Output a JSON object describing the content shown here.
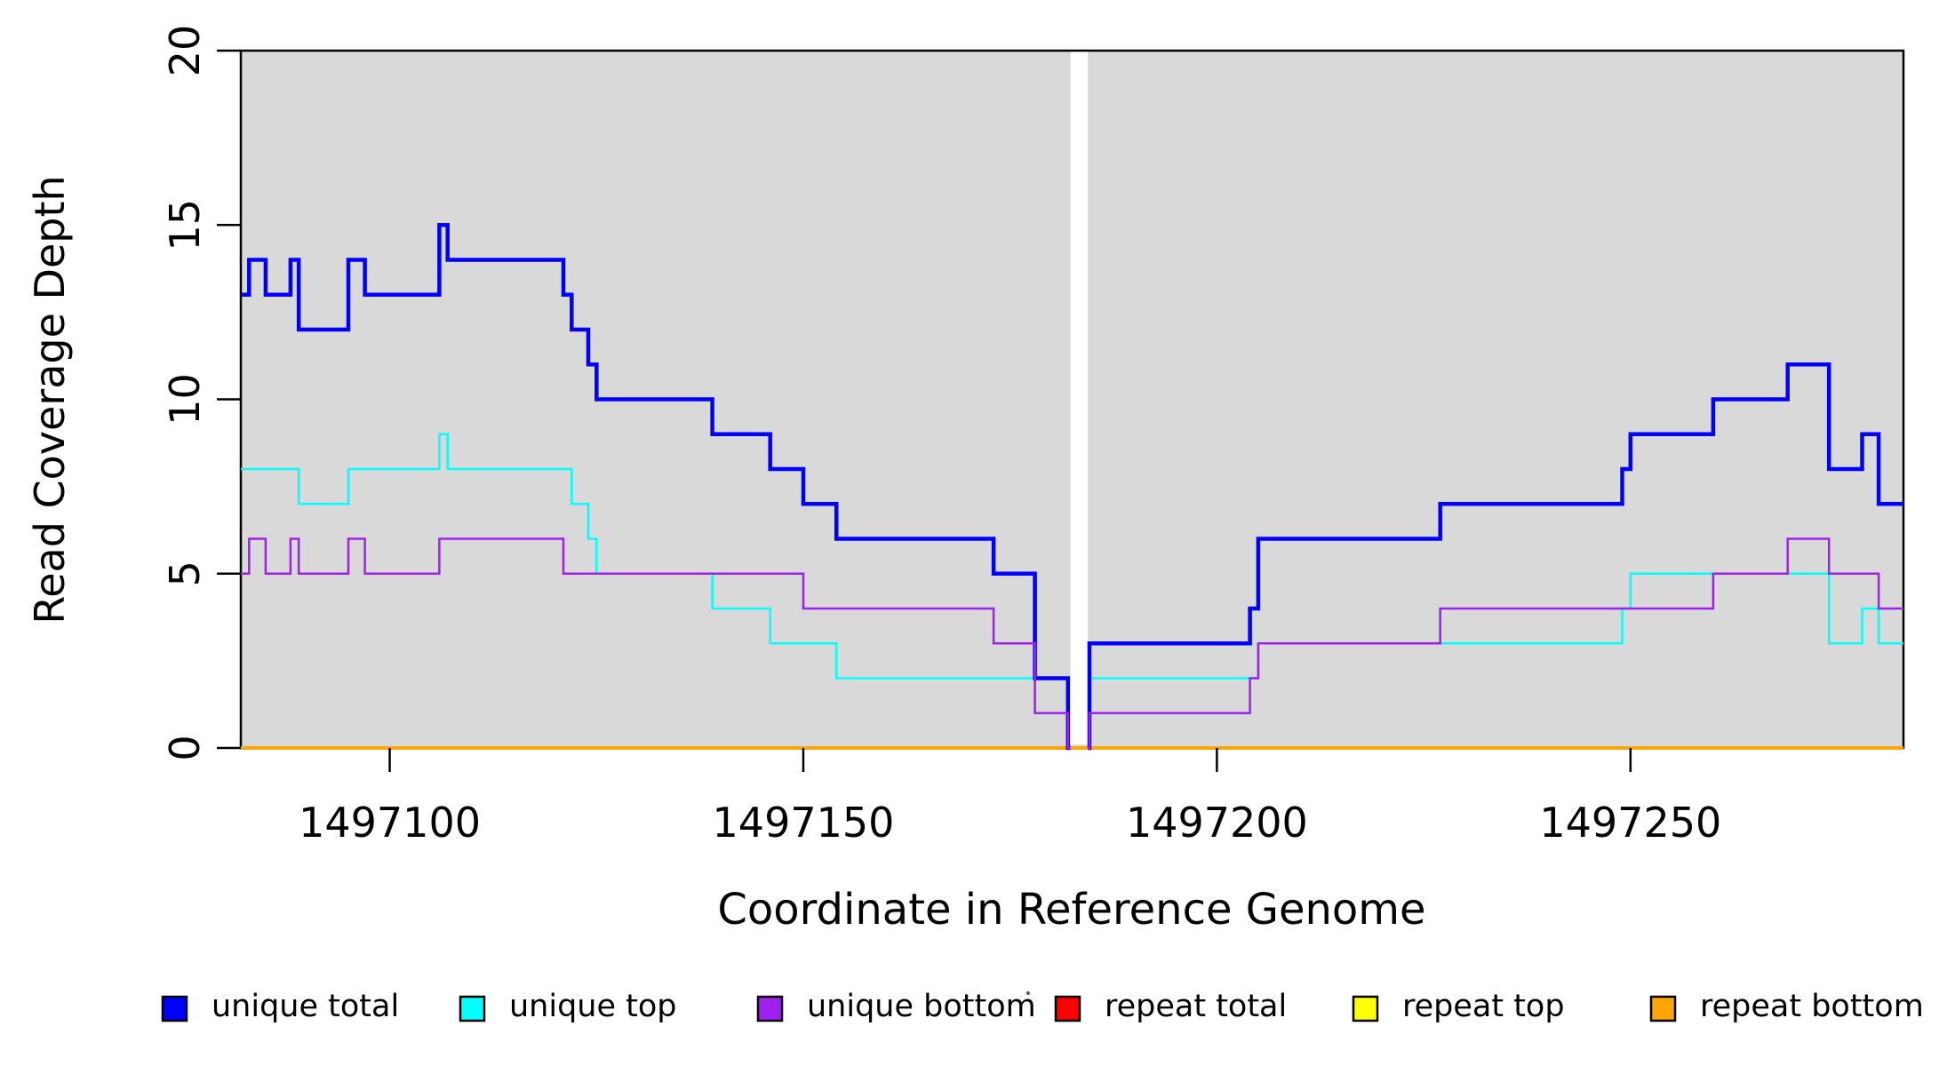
{
  "figure": {
    "kind": "read coverage depth step plot",
    "background": "#FFFFFF"
  },
  "chart_data": {
    "type": "line",
    "subtype": "step-post",
    "title": "",
    "xlabel": "Coordinate in Reference Genome",
    "ylabel": "Read Coverage Depth",
    "xlim": [
      1497082,
      1497283
    ],
    "ylim": [
      0,
      20
    ],
    "x_ticks": [
      1497100,
      1497150,
      1497200,
      1497250
    ],
    "y_ticks": [
      0,
      5,
      10,
      15,
      20
    ],
    "grid": false,
    "plot_background": "#D9D9D9",
    "axis_color": "#000000",
    "no_data_gap": {
      "from": 1497182.3,
      "to": 1497184.4,
      "color": "#FFFFFF"
    },
    "legend_position": "bottom",
    "legend": [
      {
        "label": "unique total",
        "color": "#0000FF"
      },
      {
        "label": "unique top",
        "color": "#00FFFF"
      },
      {
        "label": "unique bottom",
        "color": "#A020F0"
      },
      {
        "label": "repeat total",
        "color": "#FF0000"
      },
      {
        "label": "repeat top",
        "color": "#FFFF00"
      },
      {
        "label": "repeat bottom",
        "color": "#FFA500"
      }
    ],
    "series": [
      {
        "name": "repeat total",
        "color": "#FF0000",
        "width": 4,
        "segments": [
          [
            [
              1497082,
              0
            ],
            [
              1497283,
              0
            ]
          ]
        ]
      },
      {
        "name": "repeat top",
        "color": "#FFFF00",
        "width": 4,
        "segments": [
          [
            [
              1497082,
              0
            ],
            [
              1497283,
              0
            ]
          ]
        ]
      },
      {
        "name": "repeat bottom",
        "color": "#FFA500",
        "width": 4,
        "segments": [
          [
            [
              1497082,
              0
            ],
            [
              1497283,
              0
            ]
          ]
        ]
      },
      {
        "name": "unique top",
        "color": "#00FFFF",
        "width": 2.5,
        "segments": [
          [
            [
              1497082,
              8
            ],
            [
              1497089,
              7
            ],
            [
              1497095,
              8
            ],
            [
              1497106,
              9
            ],
            [
              1497107,
              8
            ],
            [
              1497122,
              7
            ],
            [
              1497124,
              6
            ],
            [
              1497125,
              5
            ],
            [
              1497139,
              4
            ],
            [
              1497146,
              3
            ],
            [
              1497154,
              2
            ],
            [
              1497178,
              1
            ],
            [
              1497182,
              0
            ],
            [
              1497182.3,
              0
            ]
          ],
          [
            [
              1497184.4,
              0
            ],
            [
              1497184.6,
              2
            ],
            [
              1497205,
              3
            ],
            [
              1497249,
              4
            ],
            [
              1497250,
              5
            ],
            [
              1497274,
              3
            ],
            [
              1497278,
              4
            ],
            [
              1497280,
              3
            ],
            [
              1497283,
              3
            ]
          ]
        ]
      },
      {
        "name": "unique total",
        "color": "#0000FF",
        "width": 4.5,
        "segments": [
          [
            [
              1497082,
              13
            ],
            [
              1497083,
              14
            ],
            [
              1497085,
              13
            ],
            [
              1497088,
              14
            ],
            [
              1497089,
              12
            ],
            [
              1497095,
              14
            ],
            [
              1497097,
              13
            ],
            [
              1497106,
              15
            ],
            [
              1497107,
              14
            ],
            [
              1497121,
              13
            ],
            [
              1497122,
              12
            ],
            [
              1497124,
              11
            ],
            [
              1497125,
              10
            ],
            [
              1497139,
              9
            ],
            [
              1497146,
              8
            ],
            [
              1497150,
              7
            ],
            [
              1497154,
              6
            ],
            [
              1497173,
              5
            ],
            [
              1497178,
              2
            ],
            [
              1497182,
              0
            ],
            [
              1497182.3,
              0
            ]
          ],
          [
            [
              1497184.4,
              0
            ],
            [
              1497184.6,
              3
            ],
            [
              1497204,
              4
            ],
            [
              1497205,
              6
            ],
            [
              1497227,
              7
            ],
            [
              1497249,
              8
            ],
            [
              1497250,
              9
            ],
            [
              1497260,
              10
            ],
            [
              1497269,
              11
            ],
            [
              1497274,
              8
            ],
            [
              1497278,
              9
            ],
            [
              1497280,
              7
            ],
            [
              1497283,
              7
            ]
          ]
        ]
      },
      {
        "name": "unique bottom",
        "color": "#A020F0",
        "width": 2.5,
        "segments": [
          [
            [
              1497082,
              5
            ],
            [
              1497083,
              6
            ],
            [
              1497085,
              5
            ],
            [
              1497088,
              6
            ],
            [
              1497089,
              5
            ],
            [
              1497095,
              6
            ],
            [
              1497097,
              5
            ],
            [
              1497106,
              6
            ],
            [
              1497121,
              5
            ],
            [
              1497150,
              4
            ],
            [
              1497173,
              3
            ],
            [
              1497178,
              1
            ],
            [
              1497182,
              0
            ],
            [
              1497182.3,
              0
            ]
          ],
          [
            [
              1497184.4,
              0
            ],
            [
              1497184.6,
              1
            ],
            [
              1497204,
              2
            ],
            [
              1497205,
              3
            ],
            [
              1497227,
              4
            ],
            [
              1497260,
              5
            ],
            [
              1497269,
              6
            ],
            [
              1497274,
              5
            ],
            [
              1497280,
              4
            ],
            [
              1497283,
              4
            ]
          ]
        ]
      }
    ],
    "artifact_dot": "."
  }
}
